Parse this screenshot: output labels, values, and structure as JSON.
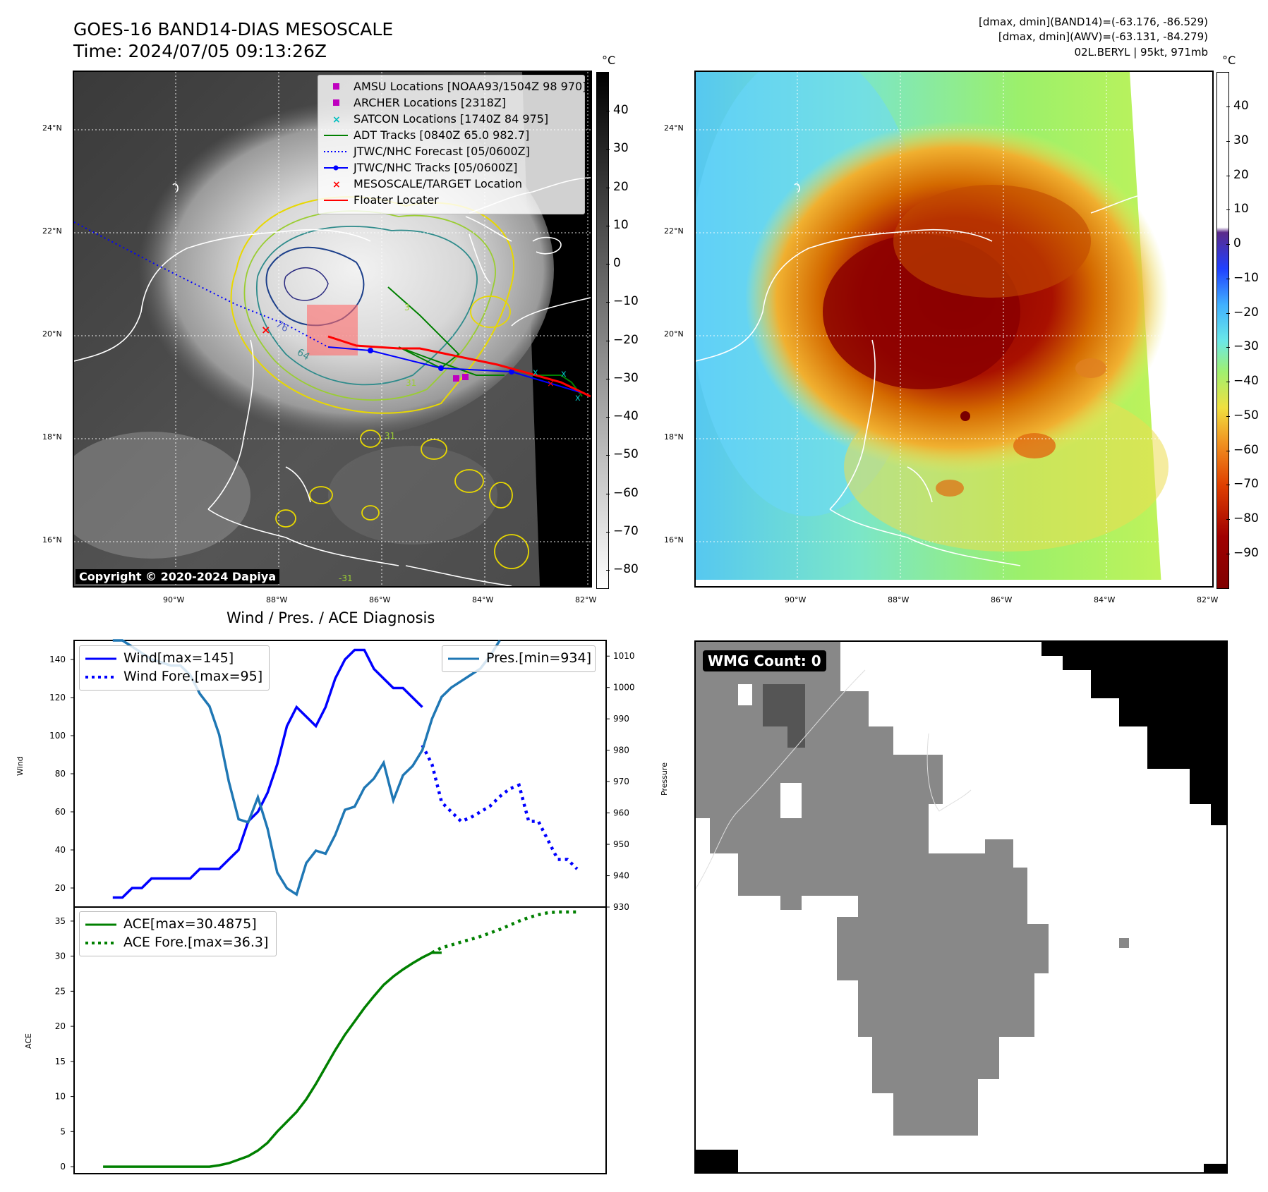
{
  "header": {
    "title_line1": "GOES-16 BAND14-DIAS MESOSCALE",
    "title_line2": "Time: 2024/07/05 09:13:26Z",
    "info_line1": "[dmax, dmin](BAND14)=(-63.176, -86.529)",
    "info_line2": "[dmax, dmin](AWV)=(-63.131, -84.279)",
    "info_line3": "02L.BERYL | 95kt, 971mb"
  },
  "map_axes": {
    "lat_labels": [
      "24°N",
      "22°N",
      "20°N",
      "18°N",
      "16°N"
    ],
    "lon_labels": [
      "90°W",
      "88°W",
      "86°W",
      "84°W",
      "82°W"
    ]
  },
  "colorbar_left": {
    "unit": "°C",
    "ticks": [
      "40",
      "30",
      "20",
      "10",
      "0",
      "−10",
      "−20",
      "−30",
      "−40",
      "−50",
      "−60",
      "−70",
      "−80"
    ]
  },
  "colorbar_right": {
    "unit": "°C",
    "ticks": [
      "40",
      "30",
      "20",
      "10",
      "0",
      "−10",
      "−20",
      "−30",
      "−40",
      "−50",
      "−60",
      "−70",
      "−80",
      "−90"
    ]
  },
  "legend_map": [
    {
      "label": "AMSU Locations [NOAA93/1504Z 98 970]",
      "color": "#bf00bf",
      "marker": "square"
    },
    {
      "label": "ARCHER Locations [2318Z]",
      "color": "#bf00bf",
      "marker": "square"
    },
    {
      "label": "SATCON Locations [1740Z 84 975]",
      "color": "#00bfbf",
      "marker": "x"
    },
    {
      "label": "ADT Tracks [0840Z 65.0 982.7]",
      "color": "#008000",
      "marker": "line"
    },
    {
      "label": "JTWC/NHC Forecast [05/0600Z]",
      "color": "#0000ff",
      "marker": "dotted"
    },
    {
      "label": "JTWC/NHC Tracks [05/0600Z]",
      "color": "#0000ff",
      "marker": "line-dot"
    },
    {
      "label": "MESOSCALE/TARGET Location",
      "color": "#ff0000",
      "marker": "x"
    },
    {
      "label": "Floater Locater",
      "color": "#ff0000",
      "marker": "line"
    }
  ],
  "contour_labels": [
    "76",
    "64",
    "31",
    "31",
    "3",
    "-31"
  ],
  "copyright": "Copyright © 2020-2024 Dapiya",
  "wmg_label": "WMG Count: 0",
  "colors": {
    "wind": "#0000ff",
    "pressure": "#1f77b4",
    "ace": "#008000",
    "floater": "#ff0000",
    "adt": "#008000"
  },
  "chart_data": [
    {
      "type": "line",
      "title": "Wind / Pres. / ACE Diagnosis",
      "ylabel": "Wind",
      "ylim": [
        10,
        150
      ],
      "yticks": [
        20,
        40,
        60,
        80,
        100,
        120,
        140
      ],
      "series": [
        {
          "name": "Wind[max=145]",
          "style": "solid",
          "color": "#0000ff",
          "x": [
            0,
            1,
            2,
            3,
            4,
            5,
            6,
            7,
            8,
            9,
            10,
            11,
            12,
            13,
            14,
            15,
            16,
            17,
            18,
            19,
            20,
            21,
            22,
            23,
            24,
            25,
            26,
            27,
            28,
            29,
            30,
            31,
            32
          ],
          "values": [
            15,
            15,
            20,
            20,
            25,
            25,
            25,
            25,
            25,
            30,
            30,
            30,
            35,
            40,
            55,
            60,
            70,
            85,
            105,
            115,
            110,
            105,
            115,
            130,
            140,
            145,
            145,
            135,
            130,
            125,
            125,
            120,
            115
          ]
        },
        {
          "name": "Wind Fore.[max=95]",
          "style": "dotted",
          "color": "#0000ff",
          "x": [
            32,
            33,
            34,
            35,
            36,
            37,
            38,
            39,
            40,
            41,
            42,
            43,
            44,
            45,
            46,
            47,
            48
          ],
          "values": [
            95,
            85,
            65,
            60,
            55,
            57,
            60,
            63,
            68,
            72,
            74,
            55,
            55,
            45,
            35,
            35,
            30
          ]
        },
        {
          "name": "Pres.[min=934]",
          "style": "solid",
          "color": "#1f77b4",
          "axis": "right",
          "x": [
            0,
            1,
            2,
            3,
            4,
            5,
            6,
            7,
            8,
            9,
            10,
            11,
            12,
            13,
            14,
            15,
            16,
            17,
            18,
            19,
            20,
            21,
            22,
            23,
            24,
            25,
            26,
            27,
            28,
            29,
            30,
            31,
            32,
            33,
            34,
            35,
            36,
            37,
            38,
            39,
            40
          ],
          "values": [
            1015,
            1015,
            1013,
            1011,
            1009,
            1008,
            1007,
            1007,
            1004,
            998,
            994,
            985,
            970,
            958,
            957,
            965,
            955,
            941,
            936,
            934,
            944,
            948,
            947,
            953,
            961,
            962,
            968,
            971,
            976,
            964,
            972,
            975,
            980,
            990,
            997,
            1000,
            1002,
            1004,
            1006,
            1010,
            1015
          ]
        }
      ],
      "y2label": "Pressure",
      "y2lim": [
        930,
        1015
      ],
      "y2ticks": [
        930,
        940,
        950,
        960,
        970,
        980,
        990,
        1000,
        1010
      ]
    },
    {
      "type": "line",
      "ylabel": "ACE",
      "ylim": [
        -1,
        37
      ],
      "yticks": [
        0,
        5,
        10,
        15,
        20,
        25,
        30,
        35
      ],
      "series": [
        {
          "name": "ACE[max=30.4875]",
          "style": "solid",
          "color": "#008000",
          "x": [
            0,
            2,
            4,
            6,
            8,
            10,
            12,
            14,
            16,
            18,
            20,
            22,
            24,
            26,
            28,
            30,
            32,
            34,
            36,
            38,
            40,
            42,
            44,
            46,
            48,
            50,
            52,
            54,
            56,
            58,
            60,
            62,
            64,
            66,
            68,
            70
          ],
          "values": [
            0,
            0,
            0,
            0,
            0,
            0,
            0,
            0,
            0,
            0,
            0,
            0,
            0.2,
            0.5,
            1.0,
            1.5,
            2.3,
            3.4,
            5.0,
            6.4,
            7.8,
            9.6,
            11.8,
            14.2,
            16.6,
            18.8,
            20.7,
            22.6,
            24.3,
            25.9,
            27.1,
            28.1,
            29.0,
            29.8,
            30.5,
            30.5
          ]
        },
        {
          "name": "ACE Fore.[max=36.3]",
          "style": "dotted",
          "color": "#008000",
          "x": [
            68,
            70,
            72,
            74,
            76,
            78,
            80,
            82,
            84,
            86,
            88,
            90,
            92,
            94,
            96,
            98
          ],
          "values": [
            30.5,
            31.2,
            31.6,
            32.0,
            32.4,
            32.8,
            33.3,
            33.8,
            34.4,
            35.0,
            35.5,
            35.9,
            36.2,
            36.3,
            36.3,
            36.3
          ]
        }
      ]
    }
  ]
}
